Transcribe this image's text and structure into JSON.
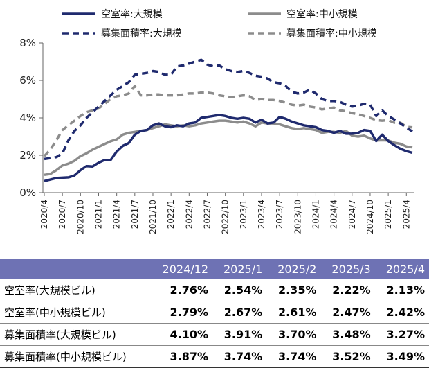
{
  "chart_data": {
    "type": "line",
    "y_ticks": [
      "0%",
      "2%",
      "4%",
      "6%",
      "8%"
    ],
    "ylim": [
      0,
      8
    ],
    "x_ticks": [
      "2020/4",
      "2020/7",
      "2020/10",
      "2021/1",
      "2021/4",
      "2021/7",
      "2021/10",
      "2022/1",
      "2022/4",
      "2022/7",
      "2022/10",
      "2023/1",
      "2023/4",
      "2023/7",
      "2023/10",
      "2024/1",
      "2024/4",
      "2024/7",
      "2024/10",
      "2025/1",
      "2025/4"
    ],
    "legend_placement": "top",
    "series": [
      {
        "name": "空室率:大規模",
        "color": "#1f2a6e",
        "style": "solid",
        "values": [
          0.62,
          0.7,
          0.78,
          0.8,
          0.82,
          0.92,
          1.2,
          1.42,
          1.4,
          1.6,
          1.75,
          1.75,
          2.2,
          2.5,
          2.65,
          3.1,
          3.3,
          3.35,
          3.6,
          3.7,
          3.55,
          3.5,
          3.6,
          3.55,
          3.7,
          3.75,
          4.0,
          4.05,
          4.1,
          4.15,
          4.1,
          4.0,
          3.95,
          4.0,
          3.95,
          3.75,
          3.9,
          3.7,
          3.75,
          4.05,
          3.95,
          3.8,
          3.7,
          3.6,
          3.55,
          3.5,
          3.35,
          3.3,
          3.2,
          3.3,
          3.15,
          3.15,
          3.2,
          3.35,
          3.3,
          2.76,
          3.1,
          2.76,
          2.54,
          2.35,
          2.22,
          2.13
        ]
      },
      {
        "name": "空室率:中小規模",
        "color": "#8c8c8c",
        "style": "solid",
        "values": [
          0.95,
          1.0,
          1.2,
          1.45,
          1.55,
          1.7,
          1.95,
          2.1,
          2.3,
          2.45,
          2.6,
          2.75,
          2.85,
          3.1,
          3.2,
          3.25,
          3.3,
          3.35,
          3.45,
          3.55,
          3.65,
          3.6,
          3.55,
          3.6,
          3.55,
          3.6,
          3.7,
          3.75,
          3.8,
          3.85,
          3.85,
          3.8,
          3.75,
          3.8,
          3.7,
          3.55,
          3.75,
          3.7,
          3.7,
          3.65,
          3.55,
          3.45,
          3.4,
          3.45,
          3.4,
          3.35,
          3.2,
          3.25,
          3.25,
          3.2,
          3.3,
          3.05,
          3.0,
          3.05,
          2.9,
          2.79,
          2.8,
          2.79,
          2.67,
          2.61,
          2.47,
          2.42
        ]
      },
      {
        "name": "募集面積率:大規模",
        "color": "#1f2a6e",
        "style": "dashed",
        "values": [
          1.8,
          1.85,
          1.9,
          2.1,
          2.8,
          3.3,
          3.6,
          4.0,
          4.3,
          4.6,
          4.9,
          5.2,
          5.5,
          5.7,
          5.9,
          6.3,
          6.35,
          6.4,
          6.5,
          6.45,
          6.3,
          6.3,
          6.75,
          6.8,
          6.9,
          7.0,
          7.1,
          6.85,
          6.75,
          6.8,
          6.6,
          6.5,
          6.45,
          6.5,
          6.4,
          6.25,
          6.2,
          6.1,
          5.9,
          5.85,
          5.7,
          5.4,
          5.3,
          5.35,
          5.5,
          5.3,
          5.0,
          4.9,
          4.9,
          4.85,
          4.7,
          4.6,
          4.65,
          4.75,
          4.7,
          4.1,
          4.4,
          4.1,
          3.91,
          3.7,
          3.48,
          3.27
        ]
      },
      {
        "name": "募集面積率:中小規模",
        "color": "#8c8c8c",
        "style": "dashed",
        "values": [
          1.95,
          2.3,
          2.8,
          3.35,
          3.6,
          3.85,
          4.1,
          4.3,
          4.4,
          4.5,
          4.75,
          5.0,
          5.15,
          5.2,
          5.3,
          5.7,
          5.2,
          5.2,
          5.25,
          5.25,
          5.2,
          5.2,
          5.2,
          5.25,
          5.3,
          5.3,
          5.35,
          5.35,
          5.3,
          5.2,
          5.15,
          5.1,
          5.15,
          5.2,
          5.15,
          4.95,
          5.0,
          4.95,
          4.95,
          4.9,
          4.8,
          4.7,
          4.65,
          4.7,
          4.6,
          4.55,
          4.45,
          4.5,
          4.55,
          4.4,
          4.35,
          4.25,
          4.2,
          4.1,
          4.0,
          3.87,
          3.85,
          3.87,
          3.74,
          3.74,
          3.52,
          3.49
        ]
      }
    ]
  },
  "table": {
    "headers": [
      "2024/12",
      "2025/1",
      "2025/2",
      "2025/3",
      "2025/4"
    ],
    "rows": [
      {
        "label": "空室率(大規模ビル)",
        "values": [
          "2.76%",
          "2.54%",
          "2.35%",
          "2.22%",
          "2.13%"
        ]
      },
      {
        "label": "空室率(中小規模ビル)",
        "values": [
          "2.79%",
          "2.67%",
          "2.61%",
          "2.47%",
          "2.42%"
        ]
      },
      {
        "label": "募集面積率(大規模ビル)",
        "values": [
          "4.10%",
          "3.91%",
          "3.70%",
          "3.48%",
          "3.27%"
        ]
      },
      {
        "label": "募集面積率(中小規模ビル)",
        "values": [
          "3.87%",
          "3.74%",
          "3.74%",
          "3.52%",
          "3.49%"
        ]
      }
    ]
  }
}
